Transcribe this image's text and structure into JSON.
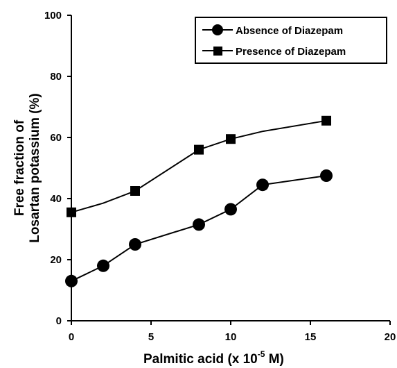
{
  "chart_data": {
    "type": "line",
    "xlabel": "Palmitic acid (x 10",
    "xlabel_exponent": "-5",
    "xlabel_unit": " M)",
    "ylabel_line1": "Free fraction of",
    "ylabel_line2": "Losartan potassium (%)",
    "xlim": [
      0,
      20
    ],
    "ylim": [
      0,
      100
    ],
    "x_ticks": [
      0,
      5,
      10,
      15,
      20
    ],
    "y_ticks": [
      0,
      20,
      40,
      60,
      80,
      100
    ],
    "x_tick_labels": [
      "0",
      "5",
      "10",
      "15",
      "20"
    ],
    "y_tick_labels": [
      "0",
      "20",
      "40",
      "60",
      "80",
      "100"
    ],
    "grid": false,
    "legend_position": "top-right",
    "series": [
      {
        "name": "Absence of Diazepam",
        "marker": "circle",
        "color": "#000000",
        "x": [
          0,
          2,
          4,
          8,
          10,
          12,
          16
        ],
        "y": [
          13,
          18,
          25,
          31.5,
          36.5,
          44.5,
          47.5
        ]
      },
      {
        "name": "Presence of Diazepam",
        "marker": "square",
        "color": "#000000",
        "x": [
          0,
          4,
          8,
          10,
          16
        ],
        "y": [
          35.5,
          42.5,
          56,
          59.5,
          65.5
        ],
        "line_x": [
          0,
          2,
          4,
          8,
          10,
          12,
          16
        ],
        "line_y": [
          35.5,
          38.5,
          42.5,
          56,
          59.5,
          62,
          65.5
        ]
      }
    ]
  }
}
